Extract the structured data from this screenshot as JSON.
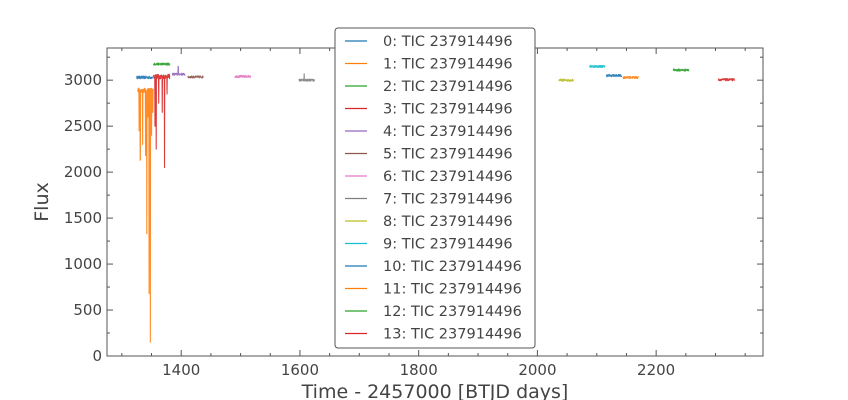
{
  "chart_data": {
    "type": "line",
    "xlabel": "Time - 2457000 [BTJD days]",
    "ylabel": "Flux",
    "xlim": [
      1275,
      2380
    ],
    "ylim": [
      0,
      3350
    ],
    "xticks": [
      1400,
      1600,
      1800,
      2000,
      2200
    ],
    "yticks": [
      0,
      500,
      1000,
      1500,
      2000,
      2500,
      3000
    ],
    "legend_position": "top-center",
    "series": [
      {
        "name": "0: TIC 237914496",
        "color": "#1f77b4",
        "x_range": [
          1325,
          1352
        ],
        "baseline": 3030,
        "noise": 15
      },
      {
        "name": "1: TIC 237914496",
        "color": "#ff7f0e",
        "x_range": [
          1327,
          1353
        ],
        "baseline": 2890,
        "noise": 25,
        "dips": [
          [
            1329,
            2450
          ],
          [
            1331,
            2130
          ],
          [
            1335,
            2300
          ],
          [
            1340,
            2180
          ],
          [
            1342,
            1330
          ],
          [
            1344,
            2600
          ],
          [
            1346,
            680
          ],
          [
            1348,
            150
          ],
          [
            1350,
            2400
          ],
          [
            1352,
            2650
          ]
        ]
      },
      {
        "name": "2: TIC 237914496",
        "color": "#2ca02c",
        "x_range": [
          1353,
          1381
        ],
        "baseline": 3175,
        "noise": 12
      },
      {
        "name": "3: TIC 237914496",
        "color": "#d62728",
        "x_range": [
          1353,
          1381
        ],
        "baseline": 3040,
        "noise": 25,
        "dips": [
          [
            1356,
            2500
          ],
          [
            1358,
            2250
          ],
          [
            1362,
            2750
          ],
          [
            1368,
            2650
          ],
          [
            1372,
            2050
          ],
          [
            1376,
            2850
          ]
        ]
      },
      {
        "name": "4: TIC 237914496",
        "color": "#9467bd",
        "x_range": [
          1385,
          1407
        ],
        "baseline": 3065,
        "noise": 12,
        "spikes": [
          [
            1395,
            3150
          ]
        ]
      },
      {
        "name": "5: TIC 237914496",
        "color": "#8c564b",
        "x_range": [
          1411,
          1437
        ],
        "baseline": 3035,
        "noise": 12
      },
      {
        "name": "6: TIC 237914496",
        "color": "#e377c2",
        "x_range": [
          1490,
          1517
        ],
        "baseline": 3040,
        "noise": 12
      },
      {
        "name": "7: TIC 237914496",
        "color": "#7f7f7f",
        "x_range": [
          1598,
          1625
        ],
        "baseline": 3000,
        "noise": 12,
        "spikes": [
          [
            1607,
            3070
          ]
        ]
      },
      {
        "name": "8: TIC 237914496",
        "color": "#bcbd22",
        "x_range": [
          2036,
          2061
        ],
        "baseline": 3000,
        "noise": 12
      },
      {
        "name": "9: TIC 237914496",
        "color": "#17becf",
        "x_range": [
          2088,
          2114
        ],
        "baseline": 3150,
        "noise": 12
      },
      {
        "name": "10: TIC 237914496",
        "color": "#1f77b4",
        "x_range": [
          2116,
          2142
        ],
        "baseline": 3050,
        "noise": 12
      },
      {
        "name": "11: TIC 237914496",
        "color": "#ff7f0e",
        "x_range": [
          2144,
          2170
        ],
        "baseline": 3030,
        "noise": 12
      },
      {
        "name": "12: TIC 237914496",
        "color": "#2ca02c",
        "x_range": [
          2229,
          2255
        ],
        "baseline": 3110,
        "noise": 12
      },
      {
        "name": "13: TIC 237914496",
        "color": "#d62728",
        "x_range": [
          2305,
          2332
        ],
        "baseline": 3005,
        "noise": 12
      }
    ]
  }
}
